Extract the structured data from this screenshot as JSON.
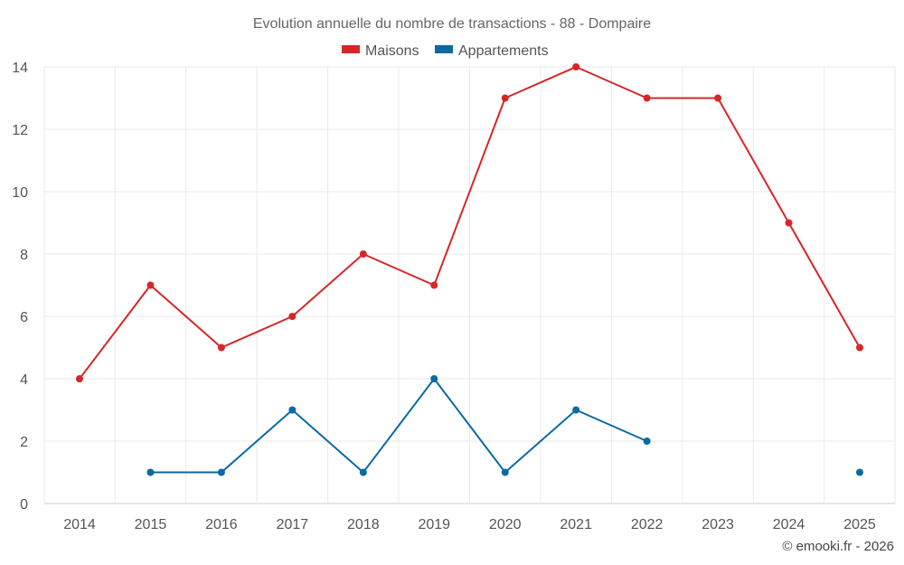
{
  "chart_data": {
    "type": "line",
    "title": "Evolution annuelle du nombre de transactions - 88 - Dompaire",
    "categories": [
      "2014",
      "2015",
      "2016",
      "2017",
      "2018",
      "2019",
      "2020",
      "2021",
      "2022",
      "2023",
      "2024",
      "2025"
    ],
    "series": [
      {
        "name": "Maisons",
        "color": "#d62728",
        "values": [
          4,
          7,
          5,
          6,
          8,
          7,
          13,
          14,
          13,
          13,
          9,
          5
        ]
      },
      {
        "name": "Appartements",
        "color": "#0b6aa2",
        "values": [
          null,
          1,
          1,
          3,
          1,
          4,
          1,
          3,
          2,
          null,
          null,
          1
        ]
      }
    ],
    "ylim": [
      0,
      14
    ],
    "yticks": [
      0,
      2,
      4,
      6,
      8,
      10,
      12,
      14
    ],
    "xlabel": "",
    "ylabel": "",
    "grid": true,
    "legend": "top-center"
  },
  "credit": "© emooki.fr - 2026"
}
